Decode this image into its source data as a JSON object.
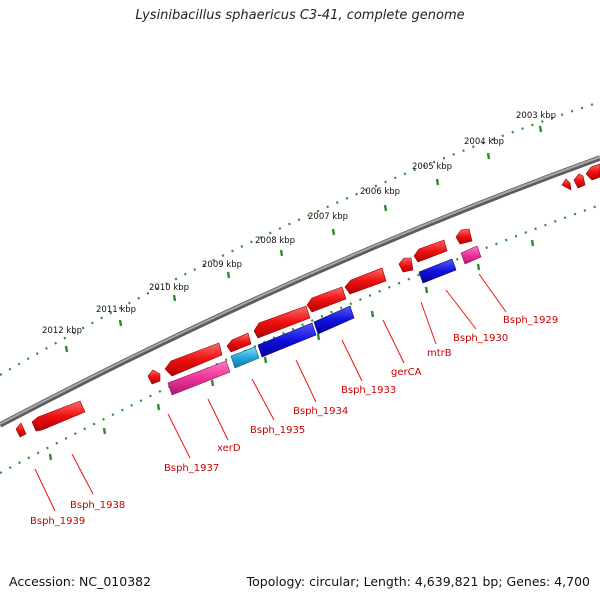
{
  "title": "Lysinibacillus sphaericus C3-41, complete genome",
  "footer": {
    "accession": "Accession: NC_010382",
    "summary": "Topology: circular; Length: 4,639,821 bp; Genes: 4,700"
  },
  "scale_labels": [
    "2012 kbp",
    "2011 kbp",
    "2010 kbp",
    "2009 kbp",
    "2008 kbp",
    "2007 kbp",
    "2006 kbp",
    "2005 kbp",
    "2004 kbp",
    "2003 kbp"
  ],
  "gene_labels": [
    "Bsph_1939",
    "Bsph_1938",
    "Bsph_1937",
    "xerD",
    "Bsph_1935",
    "Bsph_1934",
    "Bsph_1933",
    "gerCA",
    "mtrB",
    "Bsph_1930",
    "Bsph_1929"
  ],
  "colors": {
    "backbone": "#8a8a8a",
    "ticks": "#2e8b2e",
    "forward_gene": "#ee1111",
    "reverse_gene_pink": "#ee3399",
    "reverse_gene_blue": "#1111dd",
    "reverse_gene_cyan": "#22aadd",
    "label_text": "#cc0000"
  }
}
